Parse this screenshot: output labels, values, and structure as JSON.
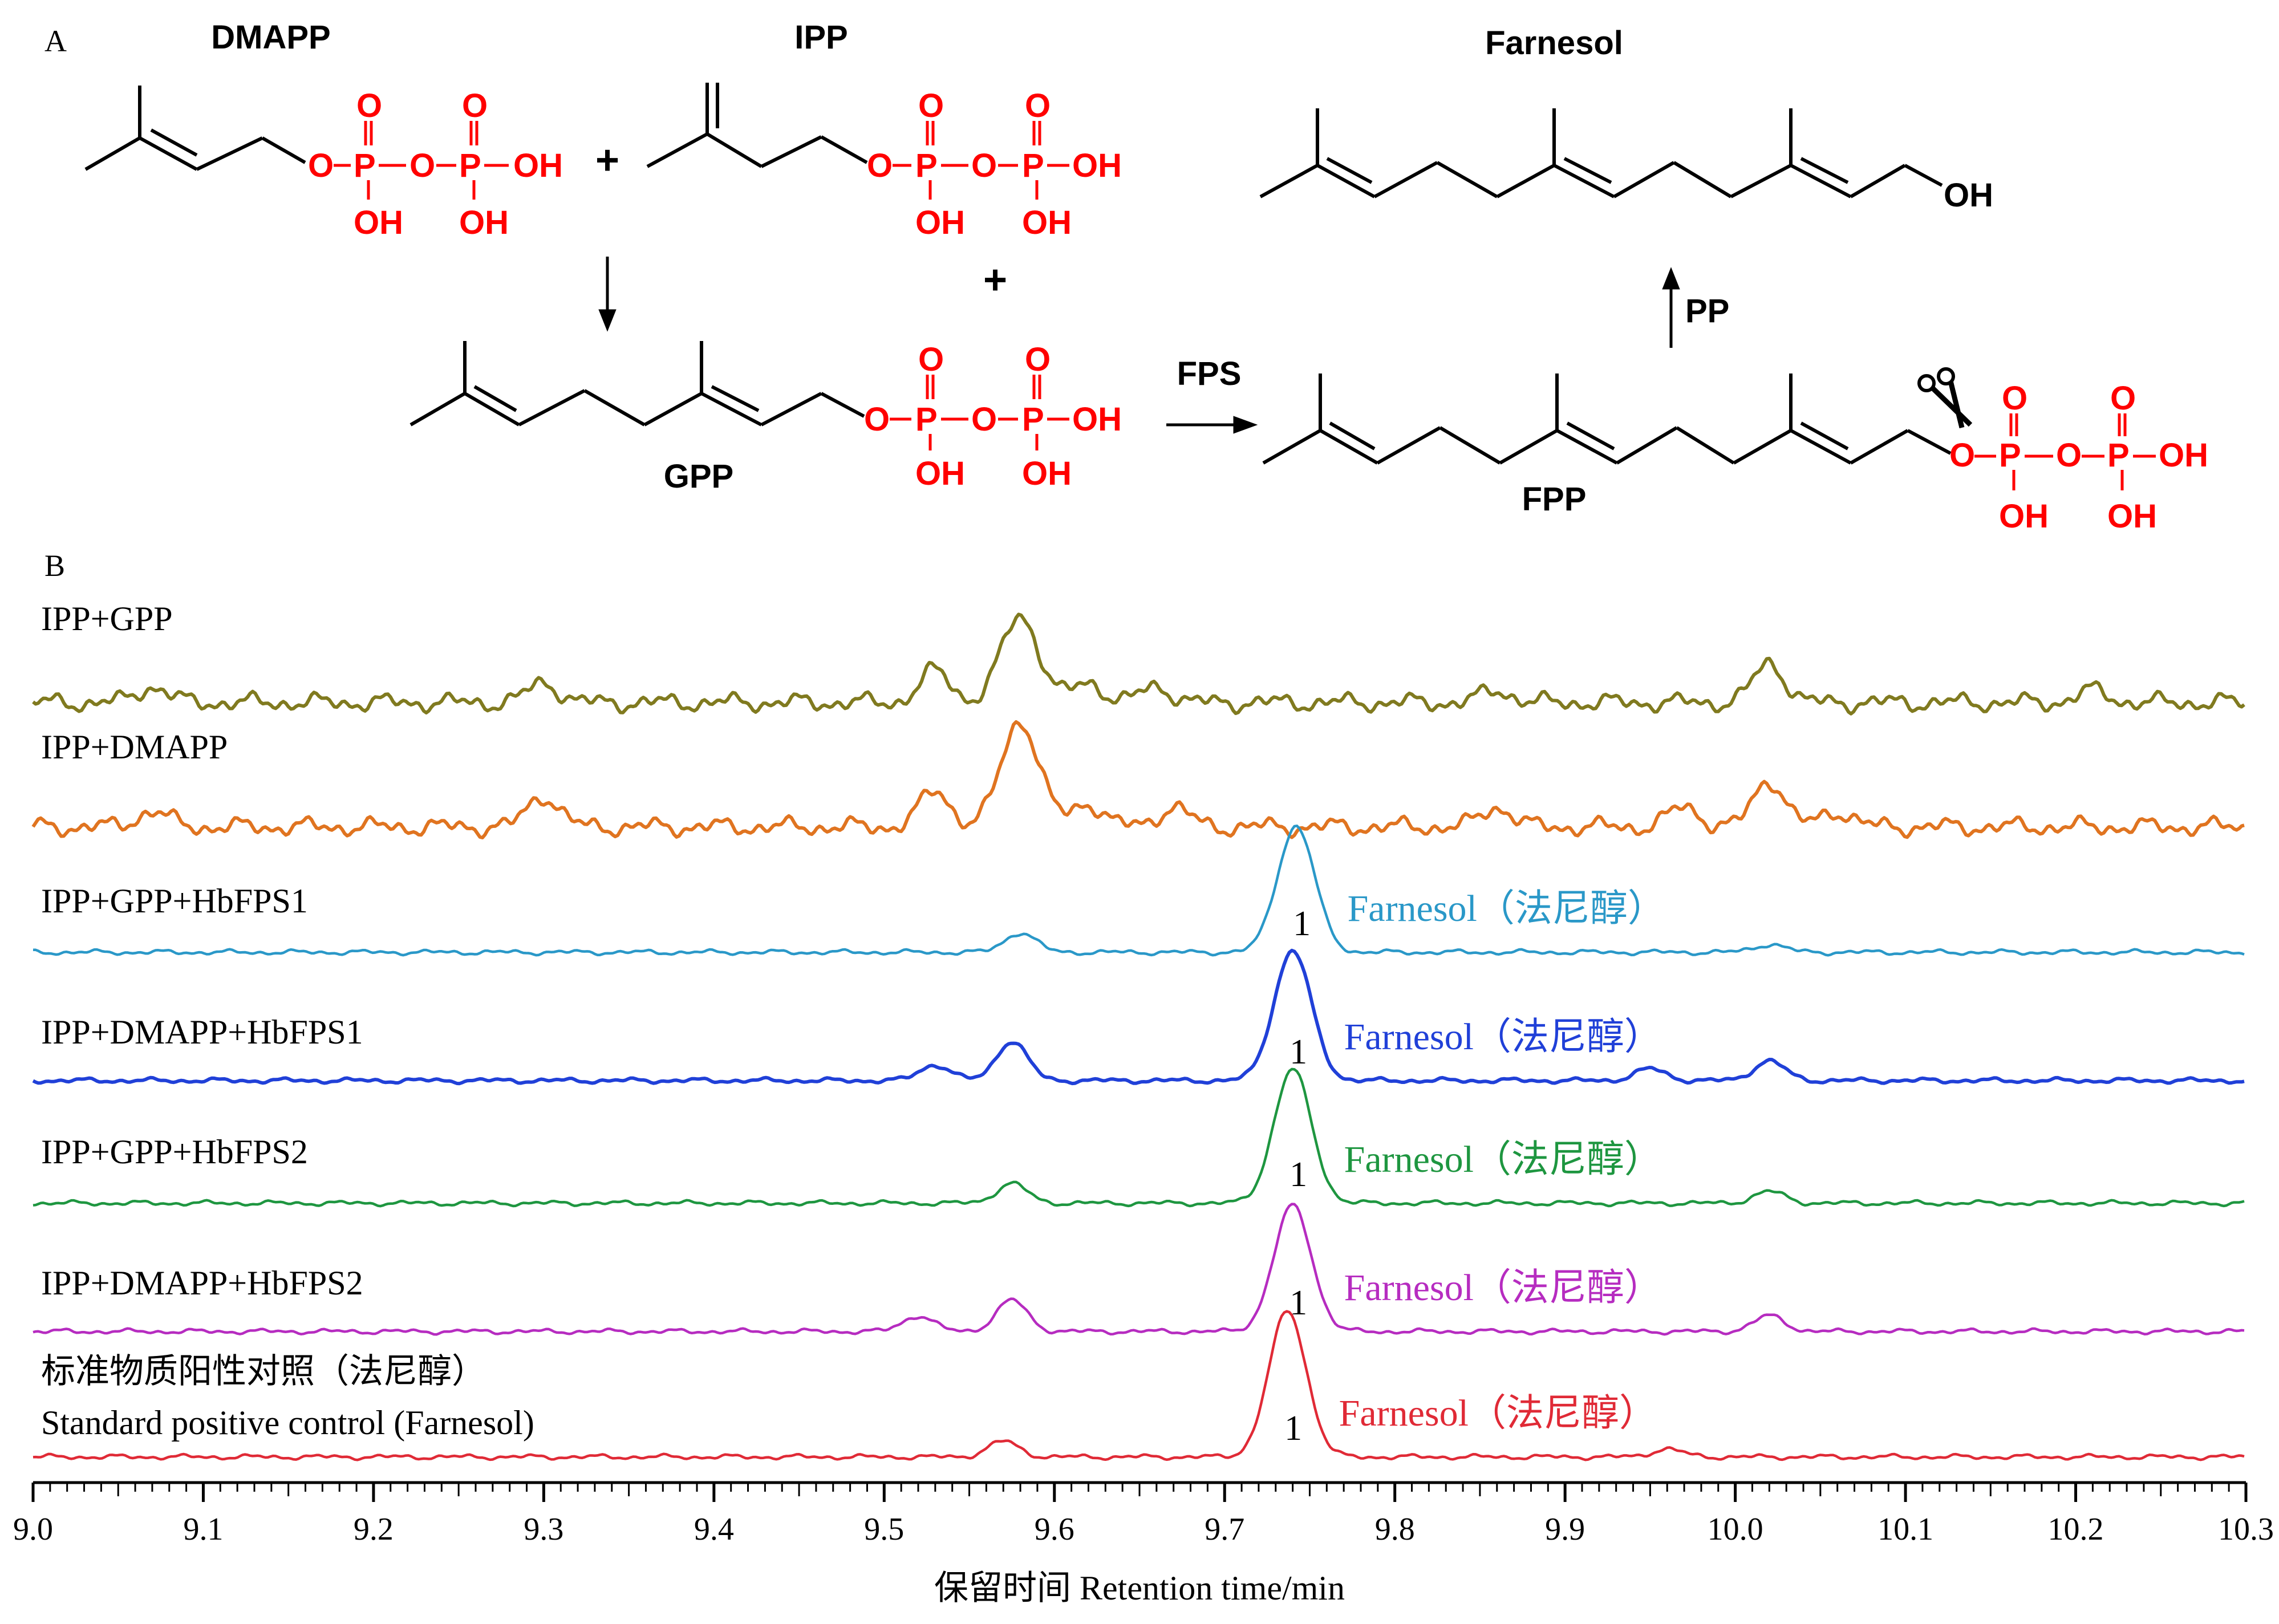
{
  "panel_a": {
    "label": "A",
    "dmapp": "DMAPP",
    "ipp": "IPP",
    "gpp": "GPP",
    "fpp": "FPP",
    "farnesol": "Farnesol",
    "enzyme": "FPS",
    "plus": "+",
    "pp": "PP",
    "oh": "OH",
    "p": "P",
    "o": "O",
    "scissors_icon": "scissors-icon",
    "color_phosphate": "#ff0000",
    "color_bond": "#000000"
  },
  "panel_b": {
    "label": "B"
  },
  "chart_data": {
    "type": "line",
    "xlabel": "保留时间  Retention time/min",
    "xlim": [
      9.0,
      10.3
    ],
    "x_ticks": [
      "9.0",
      "9.1",
      "9.2",
      "9.3",
      "9.4",
      "9.5",
      "9.6",
      "9.7",
      "9.8",
      "9.9",
      "10.0",
      "10.1",
      "10.2",
      "10.3"
    ],
    "peak_label": "1",
    "series": [
      {
        "name": "IPP+GPP",
        "color": "#807a1f",
        "peaks": [
          [
            9.07,
            0.04
          ],
          [
            9.3,
            0.05
          ],
          [
            9.53,
            0.08
          ],
          [
            9.58,
            0.22
          ],
          [
            9.62,
            0.05
          ],
          [
            9.66,
            0.04
          ],
          [
            9.86,
            0.03
          ],
          [
            10.02,
            0.1
          ],
          [
            10.21,
            0.03
          ]
        ],
        "annotation": ""
      },
      {
        "name": "IPP+DMAPP",
        "color": "#e07420",
        "peaks": [
          [
            9.07,
            0.04
          ],
          [
            9.3,
            0.08
          ],
          [
            9.53,
            0.09
          ],
          [
            9.58,
            0.27
          ],
          [
            9.62,
            0.06
          ],
          [
            9.67,
            0.05
          ],
          [
            9.86,
            0.05
          ],
          [
            9.97,
            0.05
          ],
          [
            10.02,
            0.12
          ],
          [
            10.06,
            0.04
          ]
        ],
        "annotation": ""
      },
      {
        "name": "IPP+GPP+HbFPS1",
        "color": "#2a98c8",
        "peaks": [
          [
            9.58,
            0.05
          ],
          [
            9.742,
            0.32
          ],
          [
            10.02,
            0.02
          ]
        ],
        "annotation": "Farnesol（法尼醇）"
      },
      {
        "name": "IPP+DMAPP+HbFPS1",
        "color": "#2040d8",
        "peaks": [
          [
            9.53,
            0.04
          ],
          [
            9.575,
            0.1
          ],
          [
            9.74,
            0.33
          ],
          [
            9.95,
            0.03
          ],
          [
            10.02,
            0.05
          ]
        ],
        "annotation": "Farnesol（法尼醇）"
      },
      {
        "name": "IPP+GPP+HbFPS2",
        "color": "#1e9640",
        "peaks": [
          [
            9.575,
            0.05
          ],
          [
            9.74,
            0.34
          ],
          [
            10.02,
            0.03
          ]
        ],
        "annotation": "Farnesol（法尼醇）"
      },
      {
        "name": "IPP+DMAPP+HbFPS2",
        "color": "#b62cc0",
        "peaks": [
          [
            9.52,
            0.04
          ],
          [
            9.575,
            0.08
          ],
          [
            9.74,
            0.32
          ],
          [
            10.02,
            0.04
          ]
        ],
        "annotation": "Farnesol（法尼醇）"
      },
      {
        "name": "标准物质阳性对照（法尼醇）",
        "name2": "Standard positive control (Farnesol)",
        "color": "#e02a36",
        "peaks": [
          [
            9.57,
            0.04
          ],
          [
            9.737,
            0.37
          ],
          [
            9.96,
            0.02
          ]
        ],
        "annotation": "Farnesol（法尼醇）"
      }
    ]
  }
}
